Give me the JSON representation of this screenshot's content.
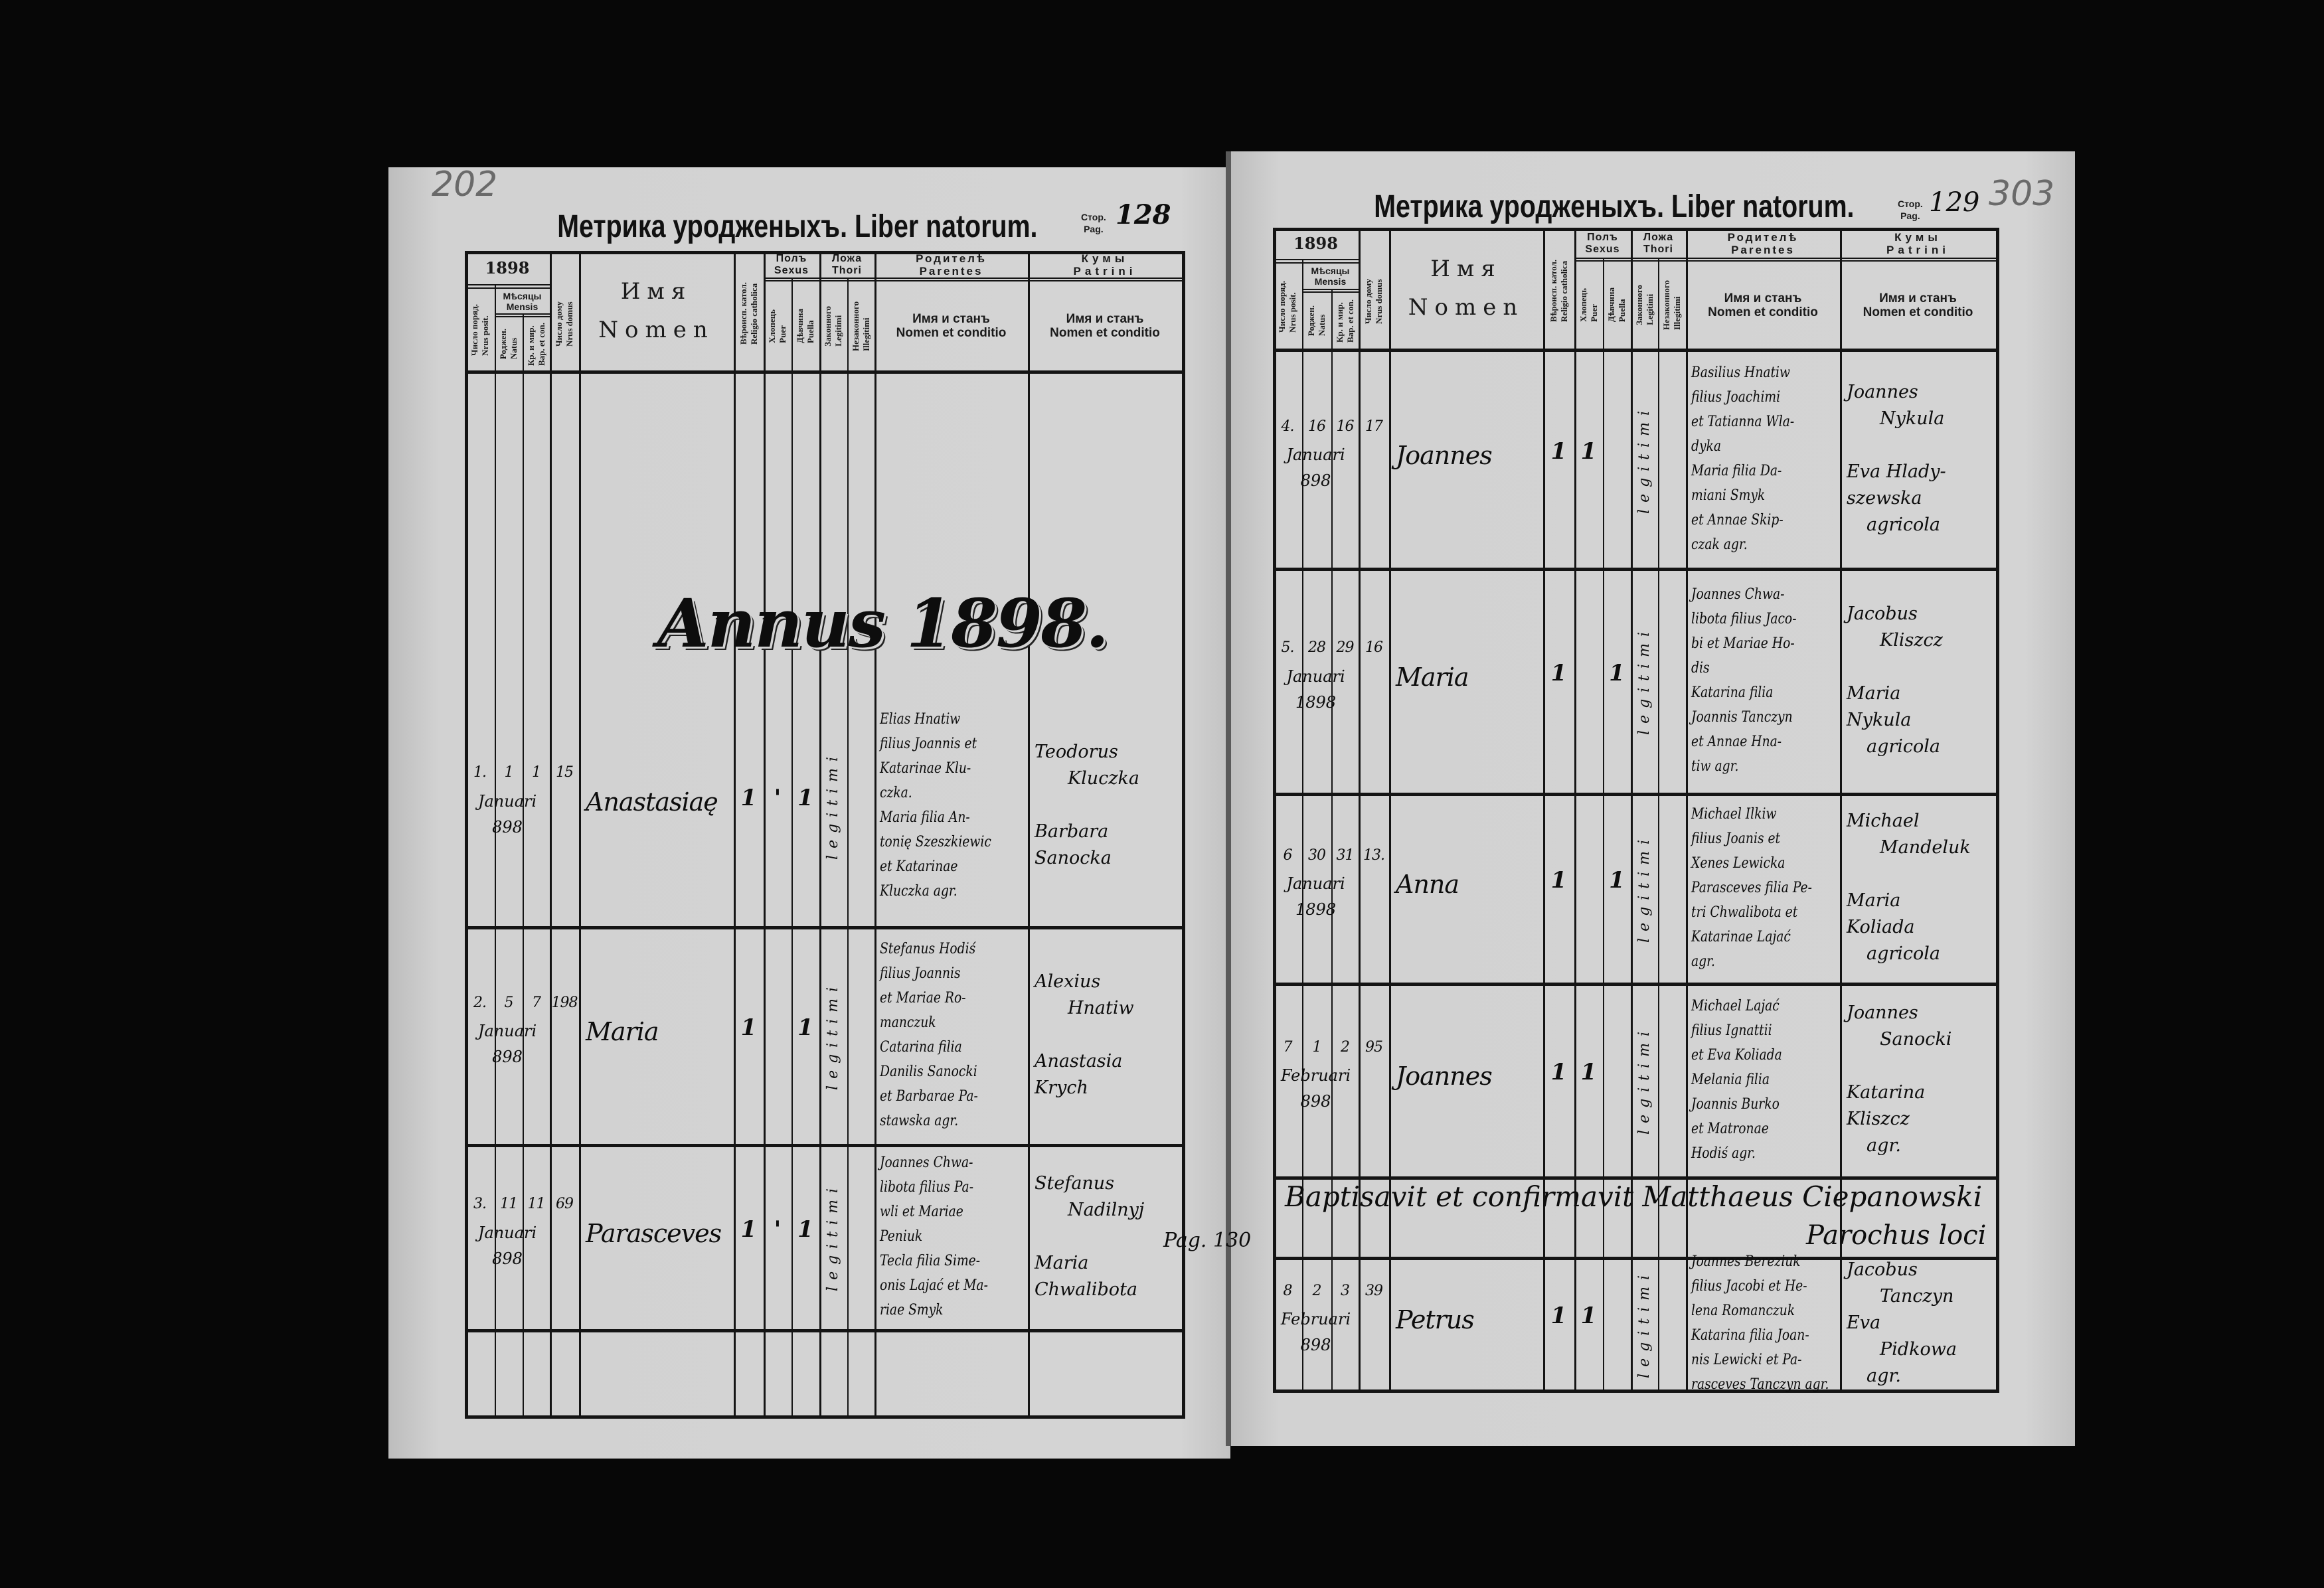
{
  "header": {
    "title": "Метрика уроджeныхъ. Liber natorum.",
    "pag_label": [
      "Стор.",
      "Pag."
    ],
    "year": "1898",
    "mensis": [
      "Мѣсяцы",
      "Mensis"
    ],
    "nrus_posit": [
      "Число поряд.",
      "Nrus posit."
    ],
    "natus": [
      "Роджен.",
      "Natus"
    ],
    "baptisatus": [
      "Кр. и мир.",
      "Bap. et con."
    ],
    "domus": [
      "Число дому",
      "Nrus domus"
    ],
    "nomen": [
      "Имя",
      "Nomen"
    ],
    "religio": [
      "Вѣроисп. катол.",
      "Religio catholica"
    ],
    "sexus": [
      "Полъ",
      "Sexus"
    ],
    "puer": [
      "Хлопець",
      "Puer"
    ],
    "puella": [
      "Дѣвчина",
      "Puella"
    ],
    "thori": [
      "Ложа",
      "Thori"
    ],
    "legitimi": [
      "Законного",
      "Legitimi"
    ],
    "illegitimi": [
      "Незаконного",
      "Illegitimi"
    ],
    "parentes": [
      "Родителѣ",
      "Parentes"
    ],
    "patrini": [
      "Кумы",
      "Patrini"
    ],
    "nomen_conditio": [
      "Имя и станъ",
      "Nomen et conditio"
    ]
  },
  "left_page": {
    "handwritten_folio": "202",
    "page_number": "128",
    "annus": "Annus 1898.",
    "entries": [
      {
        "nr": "1.",
        "natus": "1",
        "baptisatus": "1",
        "domus": "15",
        "month": "Januari",
        "year": "898",
        "name": "Anastasiaę",
        "religio": "1",
        "puer": "'",
        "puella": "1",
        "thori": "legitimi",
        "parentes": [
          "Elias Hnatiw",
          "filius Joannis et",
          "Katarinae Klu-",
          "czka.",
          "Maria filia An-",
          "tonię Szeszkiewic",
          "et Katarinae",
          "Kluczka agr."
        ],
        "patrini": [
          "Teodorus",
          "Kluczka",
          "",
          "Barbara",
          "Sanocka"
        ]
      },
      {
        "nr": "2.",
        "natus": "5",
        "baptisatus": "7",
        "domus": "198",
        "month": "Januari",
        "year": "898",
        "name": "Maria",
        "religio": "1",
        "puer": "",
        "puella": "1",
        "thori": "legitimi",
        "parentes": [
          "Stefanus Hodiś",
          "filius Joannis",
          "et Mariae Ro-",
          "manczuk",
          "Catarina filia",
          "Danilis Sanocki",
          "et Barbarae Pa-",
          "stawska agr."
        ],
        "patrini": [
          "Alexius",
          "Hnatiw",
          "",
          "Anastasia",
          "Krych"
        ]
      },
      {
        "nr": "3.",
        "natus": "11",
        "baptisatus": "11",
        "domus": "69",
        "month": "Januari",
        "year": "898",
        "name": "Parasceves",
        "religio": "1",
        "puer": "'",
        "puella": "1",
        "thori": "legitimi",
        "parentes": [
          "Joannes Chwa-",
          "libota filius Pa-",
          "wli et Mariae",
          "Peniuk",
          "Tecla filia Sime-",
          "onis Lajać et Ma-",
          "riae Smyk"
        ],
        "patrini": [
          "Stefanus",
          "Nadilnyj",
          "",
          "Maria",
          "Chwalibota"
        ]
      }
    ]
  },
  "right_page": {
    "handwritten_folio": "303",
    "page_number": "129",
    "entries": [
      {
        "nr": "4.",
        "natus": "16",
        "baptisatus": "16",
        "domus": "17",
        "month": "Januari",
        "year": "898",
        "name": "Joannes",
        "religio": "1",
        "puer": "1",
        "puella": "",
        "thori": "legitimi",
        "parentes": [
          "Basilius Hnatiw",
          "filius Joachimi",
          "et Tatianna Wla-",
          "dyka",
          "Maria filia Da-",
          "miani Smyk",
          "et Annae Skip-",
          "czak agr."
        ],
        "patrini": [
          "Joannes",
          "Nykula",
          "",
          "Eva Hlady-",
          "szewska",
          "agricola"
        ]
      },
      {
        "nr": "5.",
        "natus": "28",
        "baptisatus": "29",
        "domus": "16",
        "month": "Januari",
        "year": "1898",
        "name": "Maria",
        "religio": "1",
        "puer": "",
        "puella": "1",
        "thori": "legitimi",
        "parentes": [
          "Joannes Chwa-",
          "libota filius Jaco-",
          "bi et Mariae Ho-",
          "dis",
          "Katarina filia",
          "Joannis Tanczyn",
          "et Annae Hna-",
          "tiw agr."
        ],
        "patrini": [
          "Jacobus",
          "Kliszcz",
          "",
          "Maria",
          "Nykula",
          "agricola"
        ]
      },
      {
        "nr": "6",
        "natus": "30",
        "baptisatus": "31",
        "domus": "13.",
        "month": "Januari",
        "year": "1898",
        "name": "Anna",
        "religio": "1",
        "puer": "",
        "puella": "1",
        "thori": "legitimi",
        "parentes": [
          "Michael Ilkiw",
          "filius Joanis et",
          "Xenes Lewicka",
          "Parasceves filia Pe-",
          "tri Chwalibota et",
          "Katarinae Lajać",
          "agr."
        ],
        "patrini": [
          "Michael",
          "Mandeluk",
          "",
          "Maria",
          "Koliada",
          "agricola"
        ]
      },
      {
        "nr": "7",
        "natus": "1",
        "baptisatus": "2",
        "domus": "95",
        "month": "Februari",
        "year": "898",
        "name": "Joannes",
        "religio": "1",
        "puer": "1",
        "puella": "",
        "thori": "legitimi",
        "parentes": [
          "Michael Lajać",
          "filius Ignattii",
          "et Eva Koliada",
          "Melania filia",
          "Joannis Burko",
          "et Matronae",
          "Hodiś agr."
        ],
        "patrini": [
          "Joannes",
          "Sanocki",
          "",
          "Katarina",
          "Kliszcz",
          "agr."
        ]
      },
      {
        "nr": "8",
        "natus": "2",
        "baptisatus": "3",
        "domus": "39",
        "month": "Februari",
        "year": "898",
        "name": "Petrus",
        "religio": "1",
        "puer": "1",
        "puella": "",
        "thori": "legitimi",
        "parentes": [
          "Joannes Bereziuk",
          "filius Jacobi et He-",
          "lena Romanczuk",
          "Katarina filia Joan-",
          "nis Lewicki et Pa-",
          "rasceves Tanczyn agr."
        ],
        "patrini": [
          "Jacobus",
          "Tanczyn",
          "Eva",
          "Pidkowa",
          "agr."
        ]
      }
    ],
    "note": {
      "line1": "Baptisavit et confirmavit Matthaeus Ciepanowski",
      "line2": "Parochus loci"
    },
    "pag_ref": "Pag. 130"
  }
}
